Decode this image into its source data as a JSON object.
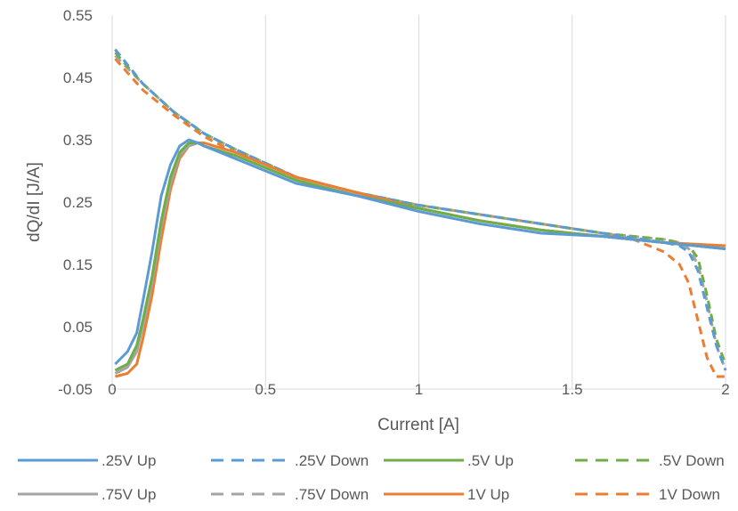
{
  "chart_data": {
    "type": "line",
    "title": "",
    "xlabel": "Current [A]",
    "ylabel": "dQ/dI [J/A]",
    "xlim": [
      0,
      2
    ],
    "ylim": [
      -0.05,
      0.55
    ],
    "xticks": [
      0,
      0.5,
      1,
      1.5,
      2
    ],
    "xtick_labels": [
      "0",
      "0.5",
      "1",
      "1.5",
      "2"
    ],
    "yticks": [
      -0.05,
      0.05,
      0.15,
      0.25,
      0.35,
      0.45,
      0.55
    ],
    "ytick_labels": [
      "-0.05",
      "0.05",
      "0.15",
      "0.25",
      "0.35",
      "0.45",
      "0.55"
    ],
    "grid": "vertical",
    "legend_position": "bottom",
    "series": [
      {
        "name": ".25V Up",
        "color": "#5B9BD5",
        "style": "solid",
        "x": [
          0.01,
          0.05,
          0.08,
          0.1,
          0.13,
          0.16,
          0.19,
          0.22,
          0.25,
          0.28,
          0.3,
          0.4,
          0.6,
          0.8,
          1.0,
          1.2,
          1.4,
          1.6,
          1.8,
          2.0
        ],
        "y": [
          -0.01,
          0.01,
          0.04,
          0.09,
          0.17,
          0.26,
          0.31,
          0.34,
          0.35,
          0.345,
          0.34,
          0.32,
          0.28,
          0.26,
          0.235,
          0.215,
          0.2,
          0.195,
          0.185,
          0.175
        ]
      },
      {
        "name": ".25V Down",
        "color": "#5B9BD5",
        "style": "dash",
        "x": [
          0.01,
          0.1,
          0.2,
          0.3,
          0.4,
          0.6,
          0.8,
          1.0,
          1.2,
          1.4,
          1.6,
          1.8,
          1.85,
          1.88,
          1.91,
          1.94,
          1.97,
          2.0
        ],
        "y": [
          0.495,
          0.44,
          0.395,
          0.36,
          0.335,
          0.29,
          0.265,
          0.245,
          0.23,
          0.215,
          0.2,
          0.185,
          0.18,
          0.17,
          0.14,
          0.08,
          0.02,
          -0.02
        ]
      },
      {
        "name": ".5V Up",
        "color": "#70AD47",
        "style": "solid",
        "x": [
          0.01,
          0.05,
          0.08,
          0.1,
          0.13,
          0.16,
          0.19,
          0.22,
          0.25,
          0.28,
          0.3,
          0.4,
          0.6,
          0.8,
          1.0,
          1.2,
          1.4,
          1.6,
          1.8,
          2.0
        ],
        "y": [
          -0.02,
          -0.01,
          0.02,
          0.06,
          0.13,
          0.22,
          0.29,
          0.33,
          0.345,
          0.345,
          0.34,
          0.325,
          0.285,
          0.26,
          0.24,
          0.22,
          0.205,
          0.195,
          0.185,
          0.175
        ]
      },
      {
        "name": ".5V Down",
        "color": "#70AD47",
        "style": "dash",
        "x": [
          0.01,
          0.1,
          0.2,
          0.3,
          0.4,
          0.6,
          0.8,
          1.0,
          1.2,
          1.4,
          1.6,
          1.8,
          1.85,
          1.88,
          1.91,
          1.94,
          1.97,
          2.0
        ],
        "y": [
          0.49,
          0.44,
          0.395,
          0.36,
          0.335,
          0.29,
          0.265,
          0.245,
          0.23,
          0.215,
          0.2,
          0.19,
          0.185,
          0.18,
          0.16,
          0.1,
          0.03,
          -0.01
        ]
      },
      {
        "name": ".75V Up",
        "color": "#A5A5A5",
        "style": "solid",
        "x": [
          0.01,
          0.05,
          0.08,
          0.1,
          0.13,
          0.16,
          0.19,
          0.22,
          0.25,
          0.28,
          0.3,
          0.4,
          0.6,
          0.8,
          1.0,
          1.2,
          1.4,
          1.6,
          1.8,
          2.0
        ],
        "y": [
          -0.025,
          -0.015,
          0.01,
          0.05,
          0.12,
          0.21,
          0.28,
          0.325,
          0.34,
          0.345,
          0.34,
          0.325,
          0.285,
          0.26,
          0.24,
          0.22,
          0.205,
          0.195,
          0.185,
          0.175
        ]
      },
      {
        "name": ".75V Down",
        "color": "#A5A5A5",
        "style": "dash",
        "x": [
          0.01,
          0.1,
          0.2,
          0.3,
          0.4,
          0.6,
          0.8,
          1.0,
          1.2,
          1.4,
          1.6,
          1.8,
          1.85,
          1.88,
          1.91,
          1.94,
          1.97,
          2.0
        ],
        "y": [
          0.485,
          0.44,
          0.395,
          0.36,
          0.335,
          0.29,
          0.265,
          0.245,
          0.23,
          0.215,
          0.2,
          0.19,
          0.185,
          0.175,
          0.15,
          0.09,
          0.02,
          -0.02
        ]
      },
      {
        "name": "1V Up",
        "color": "#ED7D31",
        "style": "solid",
        "x": [
          0.01,
          0.05,
          0.08,
          0.1,
          0.13,
          0.16,
          0.19,
          0.22,
          0.25,
          0.28,
          0.3,
          0.4,
          0.6,
          0.8,
          1.0,
          1.2,
          1.4,
          1.6,
          1.8,
          2.0
        ],
        "y": [
          -0.03,
          -0.025,
          -0.01,
          0.03,
          0.1,
          0.19,
          0.27,
          0.32,
          0.34,
          0.345,
          0.345,
          0.33,
          0.29,
          0.265,
          0.24,
          0.22,
          0.205,
          0.195,
          0.185,
          0.18
        ]
      },
      {
        "name": "1V Down",
        "color": "#ED7D31",
        "style": "dash",
        "x": [
          0.01,
          0.1,
          0.2,
          0.3,
          0.4,
          0.6,
          0.8,
          1.0,
          1.2,
          1.4,
          1.6,
          1.7,
          1.8,
          1.85,
          1.88,
          1.91,
          1.94,
          1.97,
          2.0
        ],
        "y": [
          0.48,
          0.43,
          0.39,
          0.355,
          0.33,
          0.29,
          0.265,
          0.245,
          0.23,
          0.215,
          0.2,
          0.19,
          0.17,
          0.15,
          0.12,
          0.06,
          0.0,
          -0.03,
          -0.03
        ]
      }
    ]
  }
}
